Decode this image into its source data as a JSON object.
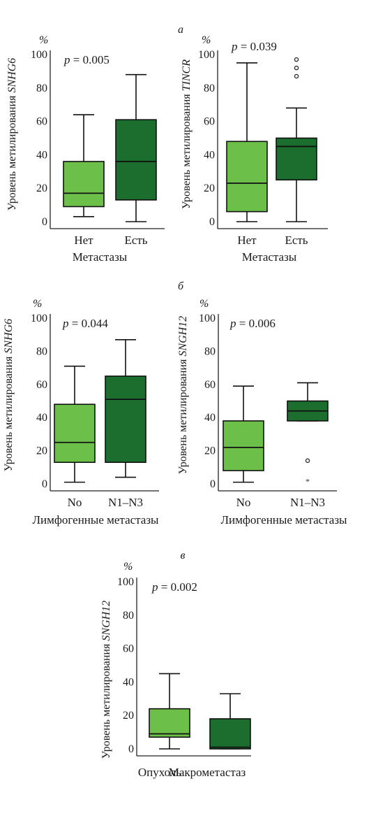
{
  "panels": [
    {
      "label": "а",
      "cx": 259,
      "cy": 47
    },
    {
      "label": "б",
      "cx": 259,
      "cy": 414
    },
    {
      "label": "в",
      "cx": 262,
      "cy": 799
    }
  ],
  "chart_data": [
    {
      "type": "box",
      "ylabel_main": "Уровень метилирования ",
      "ylabel_gene": "SNHG6",
      "unit": "%",
      "p_value": "p = 0.005",
      "xlabel": "Метастазы",
      "ylim": [
        0,
        100
      ],
      "yticks": [
        0,
        20,
        40,
        60,
        80,
        100
      ],
      "categories": [
        "Нет",
        "Есть"
      ],
      "boxes": [
        {
          "min": 3,
          "q1": 9,
          "median": 17,
          "q3": 36,
          "max": 64,
          "color": "#6cc04a",
          "outliers": []
        },
        {
          "min": 0,
          "q1": 13,
          "median": 36,
          "q3": 61,
          "max": 88,
          "color": "#1b6e2e",
          "outliers": []
        }
      ]
    },
    {
      "type": "box",
      "ylabel_main": "Уровень метилирования ",
      "ylabel_gene": "TINCR",
      "unit": "%",
      "p_value": "p = 0.039",
      "xlabel": "Метастазы",
      "ylim": [
        0,
        100
      ],
      "yticks": [
        0,
        20,
        40,
        60,
        80,
        100
      ],
      "categories": [
        "Нет",
        "Есть"
      ],
      "boxes": [
        {
          "min": 0,
          "q1": 6,
          "median": 23,
          "q3": 48,
          "max": 95,
          "color": "#6cc04a",
          "outliers": []
        },
        {
          "min": 0,
          "q1": 25,
          "median": 45,
          "q3": 50,
          "max": 68,
          "color": "#1b6e2e",
          "outliers": [
            87,
            92,
            97
          ]
        }
      ]
    },
    {
      "type": "box",
      "ylabel_main": "Уровень метилирования ",
      "ylabel_gene": "SNHG6",
      "unit": "%",
      "p_value": "p = 0.044",
      "xlabel": "Лимфогенные метастазы",
      "ylim": [
        0,
        100
      ],
      "yticks": [
        0,
        20,
        40,
        60,
        80,
        100
      ],
      "categories": [
        "No",
        "N1–N3"
      ],
      "boxes": [
        {
          "min": 1,
          "q1": 13,
          "median": 25,
          "q3": 48,
          "max": 71,
          "color": "#6cc04a",
          "outliers": []
        },
        {
          "min": 4,
          "q1": 13,
          "median": 51,
          "q3": 65,
          "max": 87,
          "color": "#1b6e2e",
          "outliers": []
        }
      ]
    },
    {
      "type": "box",
      "ylabel_main": "Уровень метилирования ",
      "ylabel_gene": "SNGH12",
      "unit": "%",
      "p_value": "p = 0.006",
      "xlabel": "Лимфогенные метастазы",
      "ylim": [
        0,
        100
      ],
      "yticks": [
        0,
        20,
        40,
        60,
        80,
        100
      ],
      "categories": [
        "No",
        "N1–N3"
      ],
      "boxes": [
        {
          "min": 1,
          "q1": 8,
          "median": 22,
          "q3": 38,
          "max": 59,
          "color": "#6cc04a",
          "outliers": []
        },
        {
          "min": 38,
          "q1": 38,
          "median": 44,
          "q3": 50,
          "max": 61,
          "color": "#1b6e2e",
          "outliers": [
            14
          ],
          "extremes": [
            2
          ]
        }
      ]
    },
    {
      "type": "box",
      "ylabel_main": "Уровень метилирования ",
      "ylabel_gene": "SNGH12",
      "unit": "%",
      "p_value": "p = 0.002",
      "xlabel": "",
      "ylim": [
        0,
        100
      ],
      "yticks": [
        0,
        20,
        40,
        60,
        80,
        100
      ],
      "categories": [
        "Опухоль",
        "Макрометастаз"
      ],
      "boxes": [
        {
          "min": 0,
          "q1": 7,
          "median": 9,
          "q3": 24,
          "max": 45,
          "color": "#6cc04a",
          "outliers": []
        },
        {
          "min": 0,
          "q1": 0,
          "median": 1,
          "q3": 18,
          "max": 33,
          "color": "#1b6e2e",
          "outliers": []
        }
      ]
    }
  ]
}
